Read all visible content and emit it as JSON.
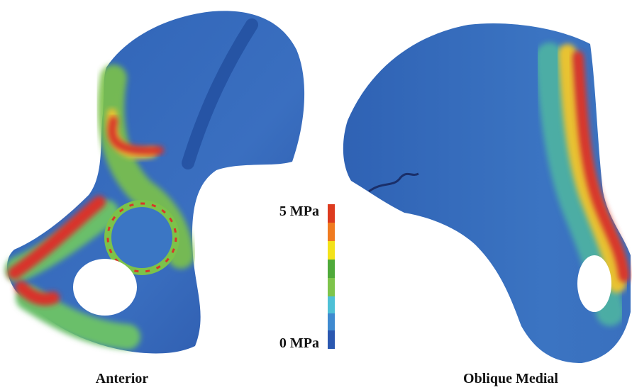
{
  "colorbar": {
    "max_label": "5 MPa",
    "min_label": "0 MPa"
  },
  "views": [
    {
      "label": "Anterior"
    },
    {
      "label": "Oblique Medial"
    }
  ]
}
